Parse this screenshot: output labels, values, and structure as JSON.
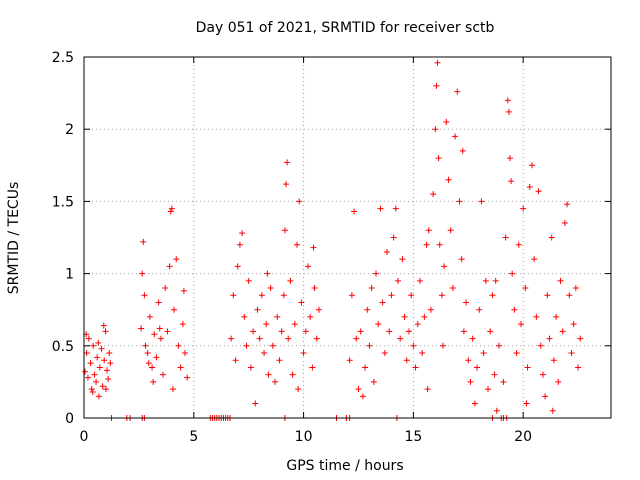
{
  "chart_data": {
    "type": "scatter",
    "title": "Day 051 of 2021, SRMTID for receiver sctb",
    "xlabel": "GPS time / hours",
    "ylabel": "SRMTID / TECUs",
    "xlim": [
      0,
      24
    ],
    "ylim": [
      0,
      2.5
    ],
    "xticks": [
      0,
      5,
      10,
      15,
      20
    ],
    "yticks": [
      0,
      0.5,
      1,
      1.5,
      2,
      2.5
    ],
    "xtick_labels": [
      "0",
      "5",
      "10",
      "15",
      "20"
    ],
    "ytick_labels": [
      "0",
      "0.5",
      "1",
      "1.5",
      "2",
      "2.5"
    ],
    "grid": true,
    "marker": "+",
    "color": "#ff0000",
    "series": [
      {
        "name": "SRMTID",
        "points": [
          [
            0.05,
            0.32
          ],
          [
            0.12,
            0.45
          ],
          [
            0.18,
            0.28
          ],
          [
            0.22,
            0.55
          ],
          [
            0.3,
            0.38
          ],
          [
            0.35,
            0.2
          ],
          [
            0.42,
            0.5
          ],
          [
            0.48,
            0.3
          ],
          [
            0.55,
            0.25
          ],
          [
            0.6,
            0.42
          ],
          [
            0.68,
            0.15
          ],
          [
            0.72,
            0.35
          ],
          [
            0.8,
            0.48
          ],
          [
            0.85,
            0.22
          ],
          [
            0.92,
            0.4
          ],
          [
            0.98,
            0.6
          ],
          [
            1.05,
            0.33
          ],
          [
            1.1,
            0.27
          ],
          [
            1.15,
            0.45
          ],
          [
            1.2,
            0.38
          ],
          [
            0.1,
            0.58
          ],
          [
            0.4,
            0.18
          ],
          [
            0.65,
            0.52
          ],
          [
            0.9,
            0.64
          ],
          [
            1.0,
            0.2
          ],
          [
            2.6,
            0.62
          ],
          [
            2.65,
            1.0
          ],
          [
            2.7,
            1.22
          ],
          [
            2.75,
            0.85
          ],
          [
            2.8,
            0.5
          ],
          [
            2.9,
            0.45
          ],
          [
            3.0,
            0.7
          ],
          [
            3.1,
            0.35
          ],
          [
            3.2,
            0.58
          ],
          [
            3.3,
            0.42
          ],
          [
            3.4,
            0.8
          ],
          [
            3.5,
            0.55
          ],
          [
            3.6,
            0.3
          ],
          [
            3.7,
            0.9
          ],
          [
            3.8,
            0.6
          ],
          [
            3.9,
            1.05
          ],
          [
            3.95,
            1.43
          ],
          [
            4.0,
            1.45
          ],
          [
            4.1,
            0.75
          ],
          [
            4.2,
            1.1
          ],
          [
            4.3,
            0.5
          ],
          [
            4.4,
            0.35
          ],
          [
            4.5,
            0.65
          ],
          [
            4.6,
            0.45
          ],
          [
            4.7,
            0.28
          ],
          [
            3.15,
            0.25
          ],
          [
            3.45,
            0.62
          ],
          [
            4.05,
            0.2
          ],
          [
            4.55,
            0.88
          ],
          [
            2.95,
            0.38
          ],
          [
            6.7,
            0.55
          ],
          [
            6.8,
            0.85
          ],
          [
            6.9,
            0.4
          ],
          [
            7.0,
            1.05
          ],
          [
            7.1,
            1.2
          ],
          [
            7.2,
            1.28
          ],
          [
            7.3,
            0.7
          ],
          [
            7.4,
            0.5
          ],
          [
            7.5,
            0.95
          ],
          [
            7.6,
            0.35
          ],
          [
            7.7,
            0.6
          ],
          [
            7.8,
            0.1
          ],
          [
            7.9,
            0.75
          ],
          [
            8.0,
            0.55
          ],
          [
            8.1,
            0.85
          ],
          [
            8.2,
            0.45
          ],
          [
            8.3,
            0.65
          ],
          [
            8.4,
            0.3
          ],
          [
            8.5,
            0.9
          ],
          [
            8.6,
            0.5
          ],
          [
            8.7,
            0.25
          ],
          [
            8.8,
            0.7
          ],
          [
            8.9,
            0.4
          ],
          [
            9.0,
            0.6
          ],
          [
            9.1,
            0.85
          ],
          [
            9.15,
            1.3
          ],
          [
            9.2,
            1.62
          ],
          [
            9.25,
            1.77
          ],
          [
            9.3,
            0.55
          ],
          [
            9.4,
            0.95
          ],
          [
            9.5,
            0.3
          ],
          [
            9.6,
            0.65
          ],
          [
            9.7,
            1.2
          ],
          [
            9.8,
            1.5
          ],
          [
            9.9,
            0.8
          ],
          [
            10.0,
            0.45
          ],
          [
            10.1,
            0.6
          ],
          [
            10.2,
            1.05
          ],
          [
            10.3,
            0.7
          ],
          [
            10.4,
            0.35
          ],
          [
            10.5,
            0.9
          ],
          [
            10.6,
            0.55
          ],
          [
            10.7,
            0.75
          ],
          [
            8.35,
            1.0
          ],
          [
            9.75,
            0.2
          ],
          [
            10.45,
            1.18
          ],
          [
            12.1,
            0.4
          ],
          [
            12.2,
            0.85
          ],
          [
            12.3,
            1.43
          ],
          [
            12.4,
            0.55
          ],
          [
            12.5,
            0.2
          ],
          [
            12.6,
            0.6
          ],
          [
            12.7,
            0.15
          ],
          [
            12.8,
            0.35
          ],
          [
            12.9,
            0.75
          ],
          [
            13.0,
            0.5
          ],
          [
            13.1,
            0.9
          ],
          [
            13.2,
            0.25
          ],
          [
            13.3,
            1.0
          ],
          [
            13.4,
            0.65
          ],
          [
            13.5,
            1.45
          ],
          [
            13.6,
            0.8
          ],
          [
            13.7,
            0.45
          ],
          [
            13.8,
            1.15
          ],
          [
            13.9,
            0.6
          ],
          [
            14.0,
            0.85
          ],
          [
            14.1,
            1.25
          ],
          [
            14.2,
            1.45
          ],
          [
            14.3,
            0.95
          ],
          [
            14.4,
            0.55
          ],
          [
            14.5,
            1.1
          ],
          [
            14.6,
            0.7
          ],
          [
            14.7,
            0.4
          ],
          [
            14.8,
            0.6
          ],
          [
            14.9,
            0.85
          ],
          [
            15.0,
            0.5
          ],
          [
            15.1,
            0.35
          ],
          [
            15.2,
            0.65
          ],
          [
            15.3,
            0.95
          ],
          [
            15.4,
            0.45
          ],
          [
            15.5,
            0.7
          ],
          [
            15.6,
            1.2
          ],
          [
            15.7,
            1.3
          ],
          [
            15.8,
            0.75
          ],
          [
            15.9,
            1.55
          ],
          [
            16.0,
            2.0
          ],
          [
            16.05,
            2.3
          ],
          [
            16.1,
            2.46
          ],
          [
            16.15,
            1.8
          ],
          [
            16.2,
            1.2
          ],
          [
            16.3,
            0.85
          ],
          [
            16.4,
            1.05
          ],
          [
            16.5,
            2.05
          ],
          [
            16.6,
            1.65
          ],
          [
            16.7,
            1.3
          ],
          [
            16.8,
            0.9
          ],
          [
            16.9,
            1.95
          ],
          [
            17.0,
            2.26
          ],
          [
            17.1,
            1.5
          ],
          [
            17.2,
            1.1
          ],
          [
            17.3,
            0.6
          ],
          [
            17.4,
            0.8
          ],
          [
            17.5,
            0.4
          ],
          [
            17.6,
            0.25
          ],
          [
            17.7,
            0.55
          ],
          [
            17.8,
            0.1
          ],
          [
            17.9,
            0.35
          ],
          [
            18.0,
            0.75
          ],
          [
            18.1,
            1.5
          ],
          [
            18.2,
            0.45
          ],
          [
            18.3,
            0.95
          ],
          [
            18.4,
            0.2
          ],
          [
            18.5,
            0.6
          ],
          [
            18.6,
            0.85
          ],
          [
            18.7,
            0.3
          ],
          [
            18.8,
            0.05
          ],
          [
            18.9,
            0.5
          ],
          [
            19.0,
            0.0
          ],
          [
            19.1,
            0.25
          ],
          [
            19.2,
            1.25
          ],
          [
            19.3,
            2.2
          ],
          [
            19.35,
            2.12
          ],
          [
            19.4,
            1.8
          ],
          [
            19.45,
            1.64
          ],
          [
            19.5,
            1.0
          ],
          [
            19.6,
            0.75
          ],
          [
            19.7,
            0.45
          ],
          [
            19.8,
            1.2
          ],
          [
            19.9,
            0.65
          ],
          [
            20.0,
            1.45
          ],
          [
            20.1,
            0.9
          ],
          [
            20.2,
            0.35
          ],
          [
            20.3,
            1.6
          ],
          [
            20.4,
            1.75
          ],
          [
            20.5,
            1.1
          ],
          [
            20.6,
            0.7
          ],
          [
            20.7,
            1.57
          ],
          [
            20.8,
            0.5
          ],
          [
            20.9,
            0.3
          ],
          [
            21.0,
            0.15
          ],
          [
            21.1,
            0.85
          ],
          [
            21.2,
            0.55
          ],
          [
            21.3,
            1.25
          ],
          [
            21.4,
            0.4
          ],
          [
            21.5,
            0.7
          ],
          [
            21.6,
            0.25
          ],
          [
            21.7,
            0.95
          ],
          [
            21.8,
            0.6
          ],
          [
            21.9,
            1.35
          ],
          [
            22.0,
            1.48
          ],
          [
            22.1,
            0.85
          ],
          [
            22.2,
            0.45
          ],
          [
            22.3,
            0.65
          ],
          [
            22.4,
            0.9
          ],
          [
            22.5,
            0.35
          ],
          [
            22.6,
            0.55
          ],
          [
            15.65,
            0.2
          ],
          [
            16.35,
            0.5
          ],
          [
            17.25,
            1.85
          ],
          [
            18.75,
            0.95
          ],
          [
            20.15,
            0.1
          ],
          [
            21.35,
            0.05
          ]
        ],
        "zero_points": [
          1.25,
          1.95,
          2.1,
          2.65,
          2.75,
          5.75,
          5.85,
          5.95,
          6.05,
          6.15,
          6.25,
          6.35,
          6.45,
          6.55,
          6.65,
          9.15,
          11.5,
          11.95,
          12.1,
          14.25,
          18.6,
          19.1,
          19.25
        ]
      }
    ]
  }
}
